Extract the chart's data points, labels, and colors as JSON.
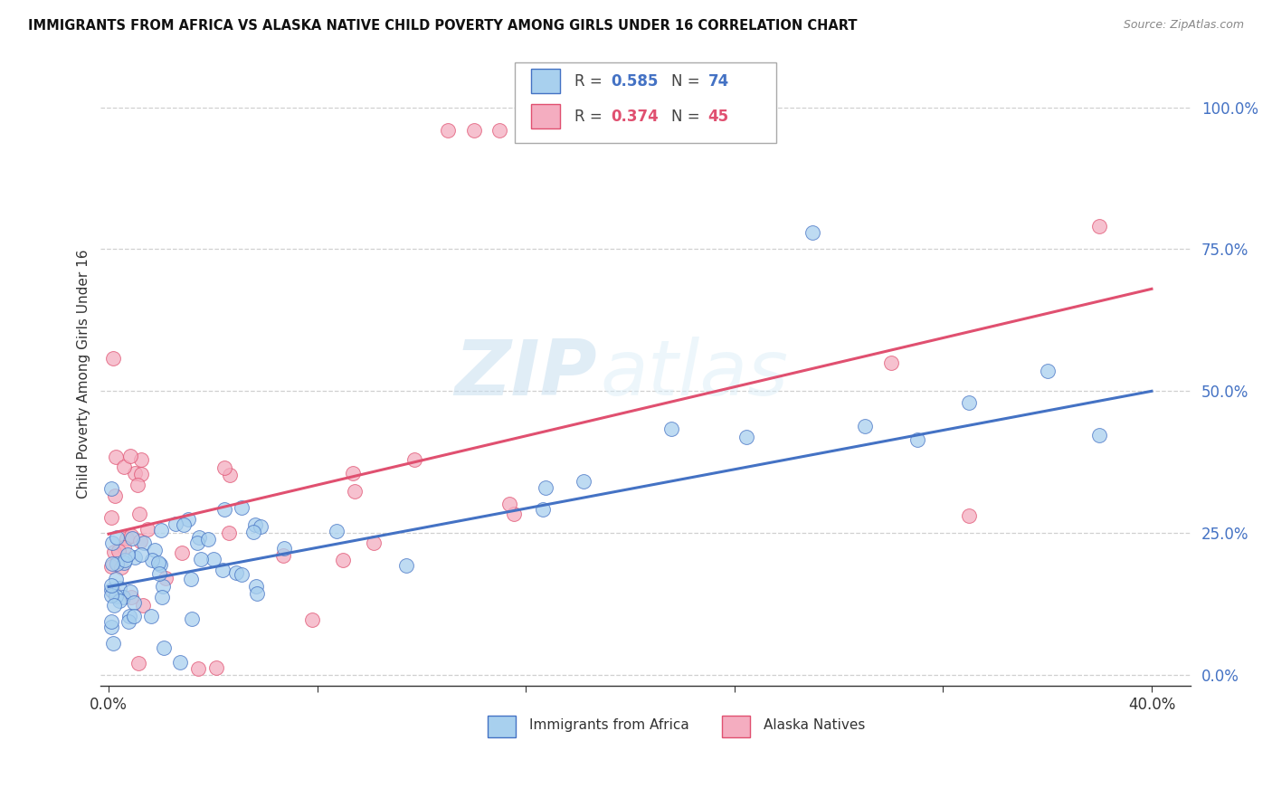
{
  "title": "IMMIGRANTS FROM AFRICA VS ALASKA NATIVE CHILD POVERTY AMONG GIRLS UNDER 16 CORRELATION CHART",
  "source": "Source: ZipAtlas.com",
  "ylabel": "Child Poverty Among Girls Under 16",
  "ytick_labels": [
    "0.0%",
    "25.0%",
    "50.0%",
    "75.0%",
    "100.0%"
  ],
  "ytick_values": [
    0.0,
    0.25,
    0.5,
    0.75,
    1.0
  ],
  "xtick_labels": [
    "0.0%",
    "",
    "",
    "",
    "",
    "40.0%"
  ],
  "xtick_values": [
    0.0,
    0.08,
    0.16,
    0.24,
    0.32,
    0.4
  ],
  "xlim": [
    -0.003,
    0.415
  ],
  "ylim": [
    -0.02,
    1.08
  ],
  "legend_blue_R": "0.585",
  "legend_blue_N": "74",
  "legend_pink_R": "0.374",
  "legend_pink_N": "45",
  "blue_color": "#a8d0ee",
  "pink_color": "#f4adc0",
  "blue_line_color": "#4472c4",
  "pink_line_color": "#e05070",
  "blue_intercept": 0.155,
  "blue_slope": 0.862,
  "pink_intercept": 0.248,
  "pink_slope": 1.08,
  "watermark_text": "ZIP",
  "watermark_text2": "atlas",
  "grid_color": "#d0d0d0",
  "bottom_legend_blue": "Immigrants from Africa",
  "bottom_legend_pink": "Alaska Natives"
}
